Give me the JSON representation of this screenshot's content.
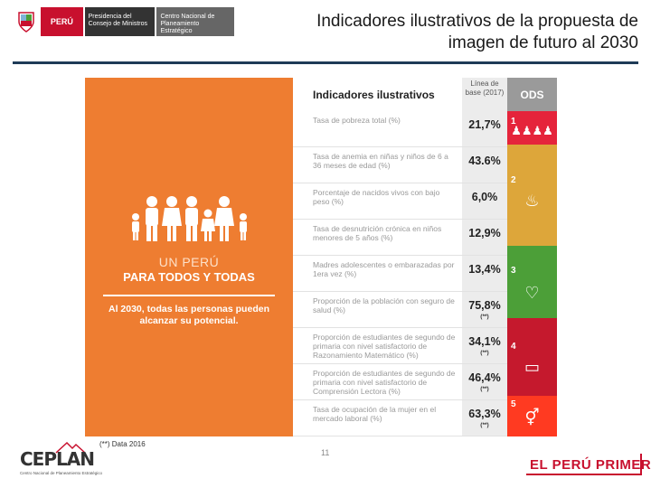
{
  "header": {
    "peru_label": "PERÚ",
    "pcm_label": "Presidencia del Consejo de Ministros",
    "ceplan_label": "Centro Nacional de Planeamiento Estratégico",
    "title": "Indicadores ilustrativos de la propuesta de imagen de futuro al 2030",
    "rule_color": "#1f3b57"
  },
  "panel": {
    "color": "#ee7d31",
    "un_peru": "UN PERÚ",
    "para_todos": "PARA TODOS Y TODAS",
    "vision": "Al 2030, todas las personas pueden alcanzar su potencial.",
    "icon": "family-icon"
  },
  "table": {
    "col_indicators": "Indicadores ilustrativos",
    "col_baseline": "Línea de base (2017)",
    "col_ods": "ODS",
    "rows": [
      {
        "indicator": "Tasa de pobreza total (%)",
        "value": "21,7%",
        "note": ""
      },
      {
        "indicator": "Tasa de anemia en niñas y niños de 6 a 36 meses de edad (%)",
        "value": "43.6%",
        "note": ""
      },
      {
        "indicator": "Porcentaje de nacidos vivos con bajo peso (%)",
        "value": "6,0%",
        "note": ""
      },
      {
        "indicator": "Tasa de desnutrición crónica en niños menores de 5 años (%)",
        "value": "12,9%",
        "note": ""
      },
      {
        "indicator": "Madres adolescentes o embarazadas por 1era vez (%)",
        "value": "13,4%",
        "note": ""
      },
      {
        "indicator": "Proporción de la población con seguro de salud (%)",
        "value": "75,8%",
        "note": "(**)"
      },
      {
        "indicator": "Proporción de estudiantes de segundo de primaria con nivel satisfactorio de Razonamiento Matemático (%)",
        "value": "34,1%",
        "note": "(**)"
      },
      {
        "indicator": "Proporción de estudiantes de segundo de primaria con nivel satisfactorio de Comprensión Lectora (%)",
        "value": "46,4%",
        "note": "(**)"
      },
      {
        "indicator": "Tasa de ocupación de la mujer en el mercado laboral (%)",
        "value": "63,3%",
        "note": "(**)"
      }
    ],
    "sdgs": [
      {
        "number": "1",
        "icon": "people-icon",
        "color": "#e5243b"
      },
      {
        "number": "2",
        "icon": "bowl-icon",
        "color": "#dda63a"
      },
      {
        "number": "3",
        "icon": "heartbeat-icon",
        "color": "#4c9f38"
      },
      {
        "number": "4",
        "icon": "book-icon",
        "color": "#c5192d"
      },
      {
        "number": "5",
        "icon": "gender-icon",
        "color": "#ff3a21"
      }
    ]
  },
  "footer": {
    "footnote": "(**) Data 2016",
    "page_number": "11",
    "ceplan_word": "CEPLAN",
    "ceplan_sub": "Centro Nacional de Planeamiento Estratégico",
    "slogan": "EL PERÚ PRIMERO"
  }
}
